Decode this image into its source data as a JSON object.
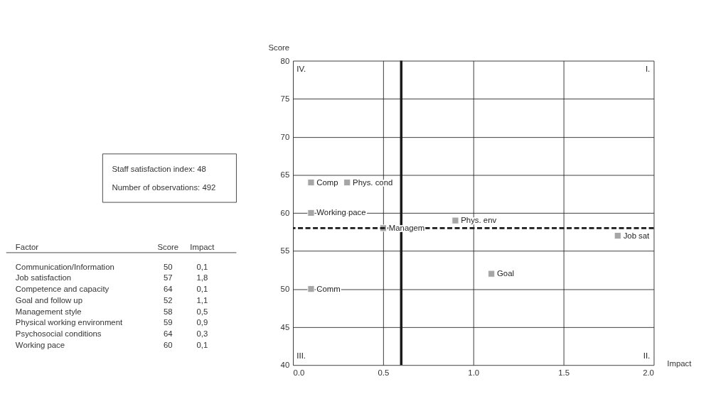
{
  "chart_data": {
    "type": "scatter",
    "xlabel": "Impact",
    "ylabel": "Score",
    "x": [
      0.1,
      1.8,
      0.1,
      1.1,
      0.5,
      0.9,
      0.3,
      0.1
    ],
    "series": [
      {
        "color": "#a6a6a6",
        "values": [
          50,
          57,
          64,
          52,
          58,
          59,
          64,
          60
        ]
      }
    ],
    "marker": "square",
    "xlim": [
      0,
      2
    ],
    "xticks": [
      {
        "value": 0,
        "label": "0.0"
      },
      0.5,
      {
        "value": 1,
        "label": "1.0"
      },
      1.5,
      {
        "value": 2,
        "label": "2.0"
      }
    ],
    "ylim": [
      40,
      80
    ],
    "yticks": [
      40,
      45,
      50,
      55,
      60,
      65,
      70,
      75,
      80
    ],
    "grid": true,
    "ref_lines": [
      {
        "axis": "x",
        "value": 0.6,
        "color": "#1a1a1a",
        "line_style": "solid"
      },
      {
        "axis": "y",
        "value": 58,
        "color": "#1a1a1a",
        "line_style": "dashed"
      }
    ],
    "annotations": [
      "Staff satisfaction index: 48",
      "Number of observations:  492",
      "Factor",
      "Score",
      "Impact",
      "Communication/Information",
      "50",
      "0,1",
      "Job satisfaction",
      "57",
      "1,8",
      "Competence and capacity",
      "64",
      "0,1",
      "Goal and follow up",
      "52",
      "1,1",
      "Management style",
      "58",
      "0,5",
      "Physical working environment",
      "59",
      "0,9",
      "Psychosocial conditions",
      "64",
      "0,3",
      "Working pace",
      "60",
      "0,1",
      "I.",
      "II.",
      "III.",
      "IV.",
      {
        "text": "Comm",
        "x": 0.1,
        "y": 50
      },
      {
        "text": "Job sat",
        "x": 1.8,
        "y": 57
      },
      {
        "text": "Comp",
        "x": 0.1,
        "y": 64
      },
      {
        "text": "Goal",
        "x": 1.1,
        "y": 52
      },
      {
        "text": "Managem",
        "x": 0.5,
        "y": 58
      },
      {
        "text": "Phys. env",
        "x": 0.9,
        "y": 59
      },
      {
        "text": "Phys. cond",
        "x": 0.3,
        "y": 64
      },
      {
        "text": "Working pace",
        "x": 0.1,
        "y": 60
      }
    ]
  }
}
